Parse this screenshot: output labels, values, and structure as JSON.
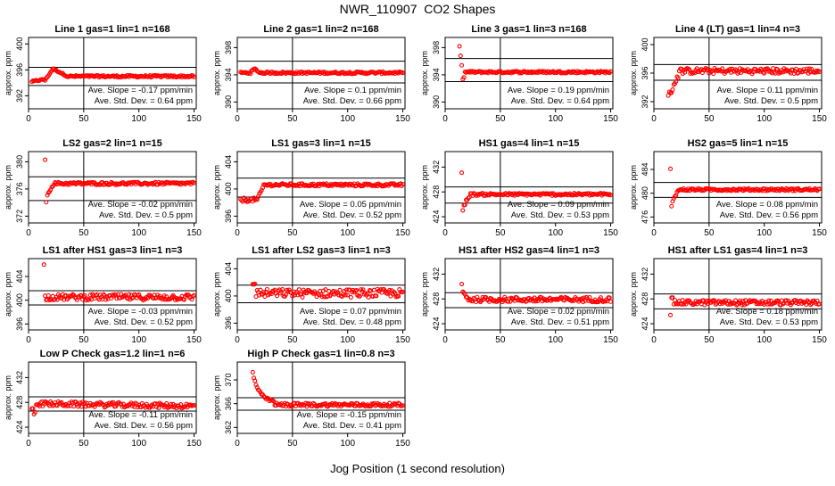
{
  "title": "NWR_110907  CO2 Shapes",
  "xlabel": "Jog Position (1 second resolution)",
  "colors": {
    "points": "#ff0000",
    "axes": "#000000"
  },
  "chart_data": [
    {
      "type": "scatter",
      "title": "Line 1 gas=1 lin=1 n=168",
      "ylabel": "approx. ppm",
      "xlim": [
        0,
        152
      ],
      "ylim": [
        390,
        401
      ],
      "yticks": [
        392,
        396,
        400
      ],
      "xticks": [
        0,
        50,
        100,
        150
      ],
      "hlines": [
        396.4,
        393.6
      ],
      "vline": 50,
      "slope_text": "Ave. Slope = -0.17 ppm/min",
      "std_text": "Ave. Std. Dev. = 0.64 ppm",
      "shape": "line1",
      "start": 3,
      "level": 395.0
    },
    {
      "type": "scatter",
      "title": "Line 2 gas=1 lin=2 n=168",
      "ylabel": "approx. ppm",
      "xlim": [
        0,
        152
      ],
      "ylim": [
        389,
        399.5
      ],
      "yticks": [
        390,
        394,
        398
      ],
      "xticks": [
        0,
        50,
        100,
        150
      ],
      "hlines": [
        396.0,
        392.8
      ],
      "vline": 50,
      "slope_text": "Ave. Slope = 0.1 ppm/min",
      "std_text": "Ave. Std. Dev. = 0.66 ppm",
      "shape": "line2",
      "start": 3,
      "level": 394.3
    },
    {
      "type": "scatter",
      "title": "Line 3 gas=1 lin=3 n=168",
      "ylabel": "approx. ppm",
      "xlim": [
        0,
        152
      ],
      "ylim": [
        389,
        399.5
      ],
      "yticks": [
        390,
        394,
        398
      ],
      "xticks": [
        0,
        50,
        100,
        150
      ],
      "hlines": [
        396.4,
        393.0
      ],
      "vline": 50,
      "slope_text": "Ave. Slope = 0.19 ppm/min",
      "std_text": "Ave. Std. Dev. = 0.64 ppm",
      "shape": "line3",
      "start": 12,
      "level": 394.4
    },
    {
      "type": "scatter",
      "title": "Line 4 (LT) gas=1 lin=4 n=3",
      "ylabel": "approx. ppm",
      "xlim": [
        0,
        152
      ],
      "ylim": [
        391,
        401
      ],
      "yticks": [
        392,
        396,
        400
      ],
      "xticks": [
        0,
        50,
        100,
        150
      ],
      "hlines": [
        397.2,
        395.0
      ],
      "vline": 50,
      "slope_text": "Ave. Slope = 0.11 ppm/min",
      "std_text": "Ave. Std. Dev. = 0.5 ppm",
      "shape": "rise",
      "start": 13,
      "level": 396.3
    },
    {
      "type": "scatter",
      "title": "LS2 gas=2 lin=1 n=15",
      "ylabel": "approx. ppm",
      "xlim": [
        0,
        152
      ],
      "ylim": [
        371,
        381.5
      ],
      "yticks": [
        372,
        376,
        380
      ],
      "xticks": [
        0,
        50,
        100,
        150
      ],
      "hlines": [
        377.8,
        374.3
      ],
      "vline": 50,
      "slope_text": "Ave. Slope = -0.02 ppm/min",
      "std_text": "Ave. Std. Dev. = 0.5 ppm",
      "shape": "spike",
      "start": 15,
      "level": 376.8
    },
    {
      "type": "scatter",
      "title": "LS1 gas=3 lin=1 n=15",
      "ylabel": "approx. ppm",
      "xlim": [
        0,
        152
      ],
      "ylim": [
        395,
        405.5
      ],
      "yticks": [
        396,
        400,
        404
      ],
      "xticks": [
        0,
        50,
        100,
        150
      ],
      "hlines": [
        401.6,
        398.8
      ],
      "vline": 50,
      "slope_text": "Ave. Slope = 0.05 ppm/min",
      "std_text": "Ave. Std. Dev. = 0.52 ppm",
      "shape": "lowrise",
      "start": 3,
      "level": 400.6
    },
    {
      "type": "scatter",
      "title": "HS1 gas=4 lin=1 n=15",
      "ylabel": "approx. ppm",
      "xlim": [
        0,
        152
      ],
      "ylim": [
        423,
        434.5
      ],
      "yticks": [
        424,
        428,
        432
      ],
      "xticks": [
        0,
        50,
        100,
        150
      ],
      "hlines": [
        428.8,
        426.2
      ],
      "vline": 50,
      "slope_text": "Ave. Slope = 0.09 ppm/min",
      "std_text": "Ave. Std. Dev. = 0.53 ppm",
      "shape": "spike",
      "start": 15,
      "level": 427.6
    },
    {
      "type": "scatter",
      "title": "HS2 gas=5 lin=1 n=15",
      "ylabel": "approx. ppm",
      "xlim": [
        0,
        152
      ],
      "ylim": [
        475,
        487
      ],
      "yticks": [
        476,
        480,
        484
      ],
      "xticks": [
        0,
        50,
        100,
        150
      ],
      "hlines": [
        481.8,
        479.3
      ],
      "vline": 50,
      "slope_text": "Ave. Slope = 0.08 ppm/min",
      "std_text": "Ave. Std. Dev. = 0.56 ppm",
      "shape": "spike",
      "start": 15,
      "level": 480.6
    },
    {
      "type": "scatter",
      "title": "LS1 after HS1 gas=3 lin=1 n=3",
      "ylabel": "approx. ppm",
      "xlim": [
        0,
        152
      ],
      "ylim": [
        395,
        407
      ],
      "yticks": [
        396,
        400,
        404
      ],
      "xticks": [
        0,
        50,
        100,
        150
      ],
      "hlines": [
        401.6,
        399.2
      ],
      "vline": 50,
      "slope_text": "Ave. Slope = -0.03 ppm/min",
      "std_text": "Ave. Std. Dev. = 0.52 ppm",
      "shape": "spikeone",
      "start": 14,
      "level": 400.5
    },
    {
      "type": "scatter",
      "title": "LS1 after LS2 gas=3 lin=1 n=3",
      "ylabel": "approx. ppm",
      "xlim": [
        0,
        152
      ],
      "ylim": [
        395,
        405.5
      ],
      "yticks": [
        396,
        400,
        404
      ],
      "xticks": [
        0,
        50,
        100,
        150
      ],
      "hlines": [
        401.6,
        399.0
      ],
      "vline": 50,
      "slope_text": "Ave. Slope = 0.07 ppm/min",
      "std_text": "Ave. Std. Dev. = 0.48 ppm",
      "shape": "noisy",
      "start": 14,
      "level": 400.4
    },
    {
      "type": "scatter",
      "title": "HS1 after HS2 gas=4 lin=1 n=3",
      "ylabel": "approx. ppm",
      "xlim": [
        0,
        152
      ],
      "ylim": [
        423,
        434.5
      ],
      "yticks": [
        424,
        428,
        432
      ],
      "xticks": [
        0,
        50,
        100,
        150
      ],
      "hlines": [
        429.0,
        426.6
      ],
      "vline": 50,
      "slope_text": "Ave. Slope = 0.02 ppm/min",
      "std_text": "Ave. Std. Dev. = 0.51 ppm",
      "shape": "spikedecay",
      "start": 15,
      "level": 427.9
    },
    {
      "type": "scatter",
      "title": "HS1 after LS1 gas=4 lin=1 n=3",
      "ylabel": "approx. ppm",
      "xlim": [
        0,
        152
      ],
      "ylim": [
        423,
        434.5
      ],
      "yticks": [
        424,
        428,
        432
      ],
      "xticks": [
        0,
        50,
        100,
        150
      ],
      "hlines": [
        428.8,
        426.4
      ],
      "vline": 50,
      "slope_text": "Ave. Slope = 0.18 ppm/min",
      "std_text": "Ave. Std. Dev. = 0.53 ppm",
      "shape": "lowstart",
      "start": 15,
      "level": 427.4
    },
    {
      "type": "scatter",
      "title": "Low P Check gas=1.2 lin=1 n=6",
      "ylabel": "approx. ppm",
      "xlim": [
        0,
        152
      ],
      "ylim": [
        423,
        434.5
      ],
      "yticks": [
        424,
        428,
        432
      ],
      "xticks": [
        0,
        50,
        100,
        150
      ],
      "hlines": [
        428.9,
        426.6
      ],
      "vline": 50,
      "slope_text": "Ave. Slope = -0.11 ppm/min",
      "std_text": "Ave. Std. Dev. = 0.56 ppm",
      "shape": "lowp",
      "start": 3,
      "level": 427.8
    },
    {
      "type": "scatter",
      "title": "High P Check gas=1 lin=0.8 n=3",
      "ylabel": "approx. ppm",
      "xlim": [
        0,
        152
      ],
      "ylim": [
        361,
        373
      ],
      "yticks": [
        362,
        366,
        370
      ],
      "xticks": [
        0,
        50,
        100,
        150
      ],
      "hlines": [
        367.0,
        364.9
      ],
      "vline": 50,
      "slope_text": "Ave. Slope = -0.15 ppm/min",
      "std_text": "Ave. Std. Dev. = 0.41 ppm",
      "shape": "decay",
      "start": 14,
      "level": 365.8
    }
  ]
}
